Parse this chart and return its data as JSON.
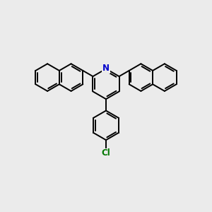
{
  "bg_color": "#ebebeb",
  "bond_color": "#000000",
  "N_color": "#0000cc",
  "Cl_color": "#007700",
  "bond_width": 1.4,
  "font_size_N": 8.5,
  "font_size_Cl": 8.5,
  "figsize": [
    3.0,
    3.0
  ],
  "dpi": 100
}
